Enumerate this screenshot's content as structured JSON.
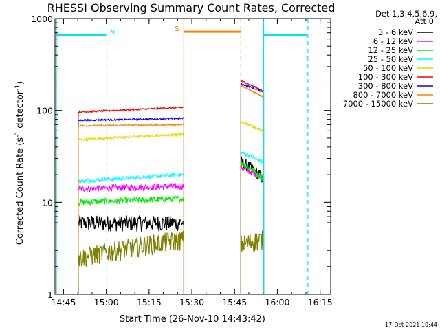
{
  "chart_data": {
    "type": "line",
    "title": "RHESSI Observing Summary Count Rates, Corrected",
    "xlabel": "Start Time (26-Nov-10 14:43:42)",
    "ylabel_main": "Corrected Count Rate (s",
    "ylabel_sup1": "-1",
    "ylabel_mid": " detector",
    "ylabel_sup2": "-1",
    "ylabel_end": ")",
    "y_scale": "log",
    "ylim": [
      1,
      1000
    ],
    "y_ticks": [
      "1",
      "10",
      "100",
      "1000"
    ],
    "x_ticks": [
      "14:45",
      "15:00",
      "15:15",
      "15:30",
      "15:45",
      "16:00",
      "16:15"
    ],
    "xlim_minutes_after_14_43_42": [
      -1.7,
      95
    ],
    "legend_header": [
      "Det 1,3,4,5,6,9,",
      "Att 0"
    ],
    "footer_timestamp": "17-Oct-2021 10:44",
    "colors": {
      "night_line": "#00e5ee",
      "saa_line": "#ff8000"
    },
    "flags": {
      "night_label": "N",
      "saa_label": "S"
    },
    "night_intervals": [
      [
        -1.7,
        16.5
      ],
      [
        71.5,
        87
      ]
    ],
    "saa_intervals": [
      [
        43.5,
        63.5
      ]
    ],
    "series": [
      {
        "name": "3 - 6 keV",
        "color": "#000000",
        "seg1": {
          "start": 6.5,
          "level": 6,
          "end_level": 6,
          "noise": 0.2
        },
        "seg2": {
          "start": 63.5,
          "level": 28,
          "end_level": 18,
          "noise": 0.15
        }
      },
      {
        "name": "6 - 12 keV",
        "color": "#ff00ff",
        "seg1": {
          "start": 6.5,
          "level": 14,
          "end_level": 15,
          "noise": 0.08
        },
        "seg2": {
          "start": 63.5,
          "level": 24,
          "end_level": 18,
          "noise": 0.08
        }
      },
      {
        "name": "12 - 25 keV",
        "color": "#00ee00",
        "seg1": {
          "start": 6.5,
          "level": 10,
          "end_level": 11,
          "noise": 0.08
        },
        "seg2": {
          "start": 63.5,
          "level": 27,
          "end_level": 18,
          "noise": 0.08
        }
      },
      {
        "name": "25 - 50 keV",
        "color": "#00ffff",
        "seg1": {
          "start": 6.5,
          "level": 17,
          "end_level": 20,
          "noise": 0.05
        },
        "seg2": {
          "start": 63.5,
          "level": 35,
          "end_level": 27,
          "noise": 0.05
        }
      },
      {
        "name": "50 - 100 keV",
        "color": "#dddd00",
        "seg1": {
          "start": 6.5,
          "level": 48,
          "end_level": 55,
          "noise": 0.03
        },
        "seg2": {
          "start": 63.5,
          "level": 75,
          "end_level": 60,
          "noise": 0.03
        }
      },
      {
        "name": "100 - 300 keV",
        "color": "#ff0000",
        "seg1": {
          "start": 6.5,
          "level": 96,
          "end_level": 108,
          "noise": 0.02
        },
        "seg2": {
          "start": 63.5,
          "level": 210,
          "end_level": 162,
          "noise": 0.02
        }
      },
      {
        "name": "300 - 800 keV",
        "color": "#0000ff",
        "seg1": {
          "start": 6.5,
          "level": 78,
          "end_level": 82,
          "noise": 0.02
        },
        "seg2": {
          "start": 63.5,
          "level": 195,
          "end_level": 158,
          "noise": 0.02
        }
      },
      {
        "name": "800 - 7000 keV",
        "color": "#ff8000",
        "seg1": {
          "start": 6.5,
          "level": 68,
          "end_level": 70,
          "noise": 0.02
        },
        "seg2": {
          "start": 63.5,
          "level": 185,
          "end_level": 140,
          "noise": 0.02
        }
      },
      {
        "name": "7000 - 15000 keV",
        "color": "#808000",
        "seg1": {
          "start": 6.5,
          "level": 2.5,
          "end_level": 4,
          "noise": 0.25
        },
        "seg2": {
          "start": 63.5,
          "level": 3.5,
          "end_level": 4,
          "noise": 0.25
        }
      }
    ],
    "saa_top_level": 720,
    "saa_top_flag_level": 660
  }
}
